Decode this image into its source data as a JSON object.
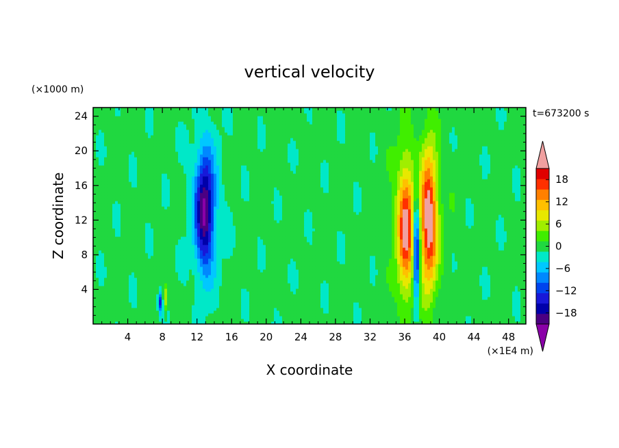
{
  "chart_data": {
    "type": "heatmap",
    "title": "vertical velocity",
    "xlabel": "X coordinate",
    "ylabel": "Z coordinate",
    "x_unit": "(×1E4 m)",
    "y_unit": "(×1000 m)",
    "time_label": "t=673200 s",
    "xlim": [
      0,
      50
    ],
    "ylim": [
      0,
      25
    ],
    "x_ticks": [
      4,
      8,
      12,
      16,
      20,
      24,
      28,
      32,
      36,
      40,
      44,
      48
    ],
    "y_ticks": [
      4,
      8,
      12,
      16,
      20,
      24
    ],
    "x_tick_labels": [
      "4",
      "8",
      "12",
      "16",
      "20",
      "24",
      "28",
      "32",
      "36",
      "40",
      "44",
      "48"
    ],
    "y_tick_labels": [
      "4",
      "8",
      "12",
      "16",
      "20",
      "24"
    ],
    "background_value": 1,
    "colorbar": {
      "levels": [
        -21,
        -18,
        -15,
        -12,
        -9,
        -6,
        -3,
        0,
        3,
        6,
        9,
        12,
        15,
        18,
        21
      ],
      "tick_values": [
        -18,
        -12,
        -6,
        0,
        6,
        12,
        18
      ],
      "tick_labels": [
        "−18",
        "−12",
        "−6",
        "0",
        "6",
        "12",
        "18"
      ],
      "colors": [
        "#4b0082",
        "#0000aa",
        "#1818d8",
        "#0044ee",
        "#0088ff",
        "#00c8ff",
        "#00e8c8",
        "#20d840",
        "#40ee00",
        "#a0ee00",
        "#e8e800",
        "#ffc000",
        "#ff8000",
        "#ff3000",
        "#e00000"
      ],
      "under_color": "#8a00a8",
      "over_color": "#f0a0a0"
    },
    "features": [
      {
        "label": "updraft-west-edge",
        "x": 8.3,
        "z": 3.0,
        "sx": 0.25,
        "sz": 1.5,
        "amp": 10
      },
      {
        "label": "downdraft-west-edge",
        "x": 7.8,
        "z": 2.5,
        "sx": 0.25,
        "sz": 1.2,
        "amp": -14
      },
      {
        "label": "downdraft-main",
        "x": 12.9,
        "z": 13.0,
        "sx": 1.05,
        "sz": 6.5,
        "amp": -20
      },
      {
        "label": "updraft-east-1",
        "x": 36.1,
        "z": 11.0,
        "sx": 0.95,
        "sz": 7.5,
        "amp": 19
      },
      {
        "label": "downdraft-east",
        "x": 37.35,
        "z": 8.5,
        "sx": 0.35,
        "sz": 6.0,
        "amp": -21
      },
      {
        "label": "updraft-east-2",
        "x": 38.8,
        "z": 12.0,
        "sx": 0.95,
        "sz": 8.0,
        "amp": 21
      },
      {
        "label": "halo-west",
        "x": 13.0,
        "z": 14.0,
        "sx": 2.2,
        "sz": 10.0,
        "amp": -3
      },
      {
        "label": "halo-east",
        "x": 37.5,
        "z": 13.0,
        "sx": 3.2,
        "sz": 10.0,
        "amp": 3
      }
    ]
  }
}
